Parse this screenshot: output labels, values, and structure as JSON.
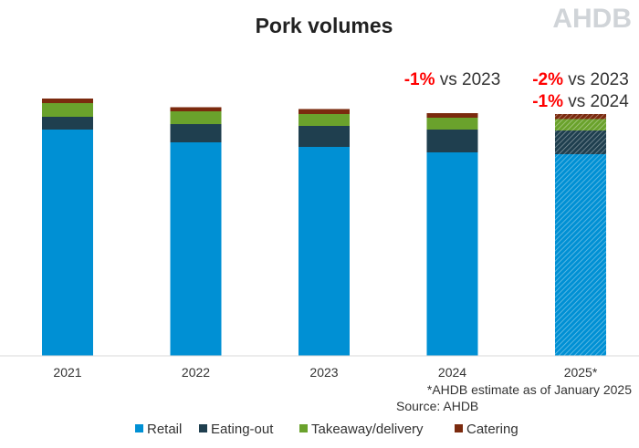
{
  "logo": "AHDB",
  "chart_data": {
    "type": "bar",
    "stacked": true,
    "title": "Pork volumes",
    "xlabel": "",
    "ylabel": "",
    "y_axis_shown": false,
    "grid": false,
    "categories": [
      "2021",
      "2022",
      "2023",
      "2024",
      "2025*"
    ],
    "estimated_categories": [
      "2025*"
    ],
    "series": [
      {
        "name": "Retail",
        "color": "#0090D4",
        "values": [
          248,
          234,
          229,
          223,
          221
        ]
      },
      {
        "name": "Eating-out",
        "color": "#1F3F4F",
        "values": [
          14,
          20,
          23,
          25,
          26
        ]
      },
      {
        "name": "Takeaway/delivery",
        "color": "#6AA22C",
        "values": [
          15,
          14,
          13,
          13,
          12.5
        ]
      },
      {
        "name": "Catering",
        "color": "#7B2A0E",
        "values": [
          5,
          4.5,
          5.5,
          5,
          5.5
        ]
      }
    ],
    "note": "Values are relative volumes estimated from bar heights; no axis is printed.",
    "annotations": [
      {
        "category": "2024",
        "lines": [
          {
            "pct": "-1%",
            "text": " vs 2023"
          }
        ]
      },
      {
        "category": "2025*",
        "lines": [
          {
            "pct": "-2%",
            "text": " vs 2023"
          },
          {
            "pct": "-1%",
            "text": " vs 2024"
          }
        ]
      }
    ],
    "footnote": "*AHDB estimate as of January 2025",
    "source": "Source: AHDB",
    "legend_position": "bottom",
    "annotation_color": "#FF0000"
  }
}
